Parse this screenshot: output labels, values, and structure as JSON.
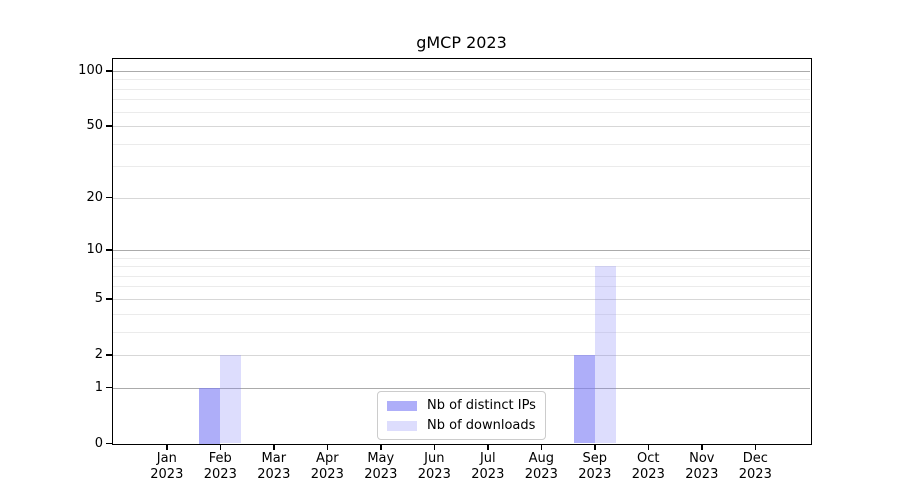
{
  "title": "gMCP 2023",
  "legend": {
    "items": [
      {
        "label": "Nb of distinct IPs",
        "color": "rgba(124,124,246,0.62)"
      },
      {
        "label": "Nb of downloads",
        "color": "rgba(124,124,246,0.26)"
      }
    ],
    "position": "lower center"
  },
  "chart_data": {
    "type": "bar",
    "title": "gMCP 2023",
    "categories": [
      "Jan 2023",
      "Feb 2023",
      "Mar 2023",
      "Apr 2023",
      "May 2023",
      "Jun 2023",
      "Jul 2023",
      "Aug 2023",
      "Sep 2023",
      "Oct 2023",
      "Nov 2023",
      "Dec 2023"
    ],
    "series": [
      {
        "name": "Nb of distinct IPs",
        "color": "rgba(124,124,246,0.62)",
        "values": [
          0,
          1,
          0,
          0,
          0,
          0,
          0,
          0,
          2,
          0,
          0,
          0
        ]
      },
      {
        "name": "Nb of downloads",
        "color": "rgba(124,124,246,0.26)",
        "values": [
          0,
          2,
          0,
          0,
          0,
          0,
          0,
          0,
          8,
          0,
          0,
          0
        ]
      }
    ],
    "xlabel": "",
    "ylabel": "",
    "yscale": "log1p",
    "ylim": [
      0,
      116
    ],
    "ytick_labels": [
      "0",
      "1",
      "2",
      "5",
      "10",
      "20",
      "50",
      "100"
    ],
    "yticks": [
      0,
      1,
      2,
      5,
      10,
      20,
      50,
      100
    ],
    "yticks_decade": [
      1,
      10,
      100
    ],
    "yticks_mid": [
      2,
      5,
      20,
      50
    ],
    "yticks_minor": [
      3,
      4,
      6,
      7,
      8,
      9,
      30,
      40,
      60,
      70,
      80,
      90
    ],
    "grid": true,
    "grid_color_decade": "#ababab",
    "grid_color_mid": "#d7d7d7",
    "grid_color_minor": "#ebebeb",
    "legend_position": "lower center"
  }
}
